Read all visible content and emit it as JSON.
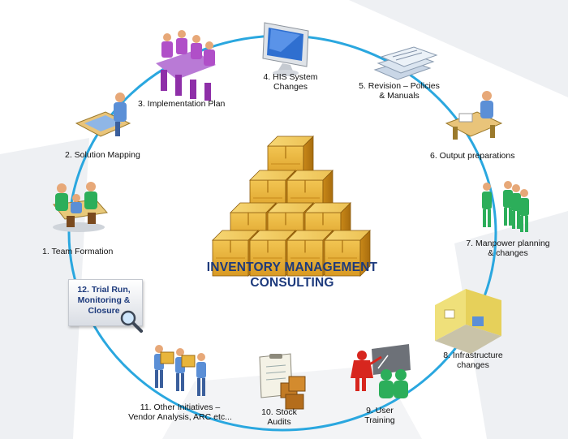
{
  "title": {
    "line1": "INVENTORY MANAGEMENT",
    "line2": "CONSULTING"
  },
  "steps": [
    {
      "id": 1,
      "label": "1. Team Formation",
      "icon": "team-meeting-icon"
    },
    {
      "id": 2,
      "label": "2. Solution Mapping",
      "icon": "planning-desk-icon"
    },
    {
      "id": 3,
      "label": "3. Implementation Plan",
      "icon": "conference-room-icon"
    },
    {
      "id": 4,
      "label": "4. HIS System\nChanges",
      "icon": "computer-monitor-icon"
    },
    {
      "id": 5,
      "label": "5. Revision – Policies\n& Manuals",
      "icon": "documents-icon"
    },
    {
      "id": 6,
      "label": "6. Output preparations",
      "icon": "desk-worker-icon"
    },
    {
      "id": 7,
      "label": "7. Manpower planning\n& changes",
      "icon": "staff-figures-icon"
    },
    {
      "id": 8,
      "label": "8. Infrastructure\nchanges",
      "icon": "room-icon"
    },
    {
      "id": 9,
      "label": "9. User\nTraining",
      "icon": "presentation-icon"
    },
    {
      "id": 10,
      "label": "10. Stock\nAudits",
      "icon": "clipboard-boxes-icon"
    },
    {
      "id": 11,
      "label": "11. Other Initiatives –\nVendor Analysis, ARC etc...",
      "icon": "box-carriers-icon"
    },
    {
      "id": 12,
      "label": "12. Trial Run,\nMonitoring &\nClosure",
      "icon": "magnifier-icon"
    }
  ],
  "colors": {
    "circle": "#2aa7df",
    "title": "#1d3a7c",
    "box": "#e8b53c",
    "box_dark": "#b37a12",
    "figure_blue": "#5b8fd6",
    "figure_purple": "#b04fc8",
    "figure_green": "#2cae5a",
    "figure_red": "#d7261e"
  }
}
